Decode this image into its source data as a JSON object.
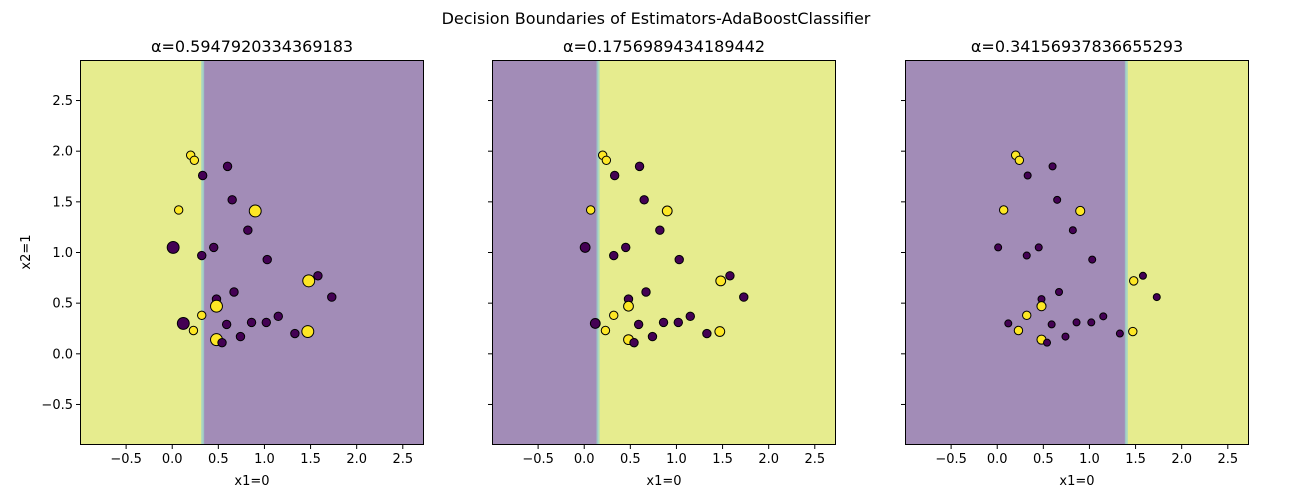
{
  "suptitle": "Decision Boundaries of Estimators-AdaBoostClassifier",
  "chart_data": {
    "type": "scatter",
    "xlim": [
      -1.0,
      2.73
    ],
    "ylim": [
      -0.9,
      2.9
    ],
    "xticks": [
      -0.5,
      0.0,
      0.5,
      1.0,
      1.5,
      2.0,
      2.5
    ],
    "yticks": [
      -0.5,
      0.0,
      0.5,
      1.0,
      1.5,
      2.0,
      2.5
    ],
    "xtick_labels": [
      "−0.5",
      "0.0",
      "0.5",
      "1.0",
      "1.5",
      "2.0",
      "2.5"
    ],
    "ytick_labels": [
      "−0.5",
      "0.0",
      "0.5",
      "1.0",
      "1.5",
      "2.0",
      "2.5"
    ],
    "xlabel": "x1=0",
    "ylabel": "x2=1",
    "colors": {
      "class0": "#440154",
      "class1": "#fde725",
      "region0": "#a28cb7",
      "region1": "#e6ec8e",
      "edge": "#000000"
    },
    "points": [
      {
        "x": 0.2,
        "y": 1.96,
        "c": 1
      },
      {
        "x": 0.24,
        "y": 1.91,
        "c": 1
      },
      {
        "x": 0.6,
        "y": 1.85,
        "c": 0
      },
      {
        "x": 0.33,
        "y": 1.76,
        "c": 0
      },
      {
        "x": 0.65,
        "y": 1.52,
        "c": 0
      },
      {
        "x": 0.07,
        "y": 1.42,
        "c": 1
      },
      {
        "x": 0.9,
        "y": 1.41,
        "c": 1
      },
      {
        "x": 0.82,
        "y": 1.22,
        "c": 0
      },
      {
        "x": 0.01,
        "y": 1.05,
        "c": 0
      },
      {
        "x": 0.45,
        "y": 1.05,
        "c": 0
      },
      {
        "x": 0.32,
        "y": 0.97,
        "c": 0
      },
      {
        "x": 1.03,
        "y": 0.93,
        "c": 0
      },
      {
        "x": 1.58,
        "y": 0.77,
        "c": 0
      },
      {
        "x": 1.48,
        "y": 0.72,
        "c": 1
      },
      {
        "x": 0.67,
        "y": 0.61,
        "c": 0
      },
      {
        "x": 1.73,
        "y": 0.56,
        "c": 0
      },
      {
        "x": 0.48,
        "y": 0.54,
        "c": 0
      },
      {
        "x": 0.48,
        "y": 0.47,
        "c": 1
      },
      {
        "x": 0.32,
        "y": 0.38,
        "c": 1
      },
      {
        "x": 1.15,
        "y": 0.37,
        "c": 0
      },
      {
        "x": 0.86,
        "y": 0.31,
        "c": 0
      },
      {
        "x": 1.02,
        "y": 0.31,
        "c": 0
      },
      {
        "x": 0.12,
        "y": 0.3,
        "c": 0
      },
      {
        "x": 0.59,
        "y": 0.29,
        "c": 0
      },
      {
        "x": 0.23,
        "y": 0.23,
        "c": 1
      },
      {
        "x": 1.47,
        "y": 0.22,
        "c": 1
      },
      {
        "x": 1.33,
        "y": 0.2,
        "c": 0
      },
      {
        "x": 0.74,
        "y": 0.17,
        "c": 0
      },
      {
        "x": 0.48,
        "y": 0.14,
        "c": 1
      },
      {
        "x": 0.54,
        "y": 0.11,
        "c": 0
      }
    ],
    "panels": [
      {
        "title": "α=0.5947920334369183",
        "threshold": 0.33,
        "left_class": 1,
        "sizes": [
          1.2,
          1.2,
          1.2,
          1.2,
          1.2,
          1.2,
          1.7,
          1.2,
          1.7,
          1.2,
          1.2,
          1.2,
          1.2,
          1.7,
          1.2,
          1.2,
          1.2,
          1.7,
          1.2,
          1.2,
          1.2,
          1.2,
          1.7,
          1.2,
          1.2,
          1.7,
          1.2,
          1.2,
          1.7,
          1.2
        ]
      },
      {
        "title": "α=0.1756989434189442",
        "threshold": 0.15,
        "left_class": 0,
        "sizes": [
          1.2,
          1.2,
          1.2,
          1.2,
          1.2,
          1.2,
          1.4,
          1.2,
          1.4,
          1.2,
          1.2,
          1.2,
          1.2,
          1.4,
          1.2,
          1.2,
          1.2,
          1.4,
          1.2,
          1.2,
          1.2,
          1.2,
          1.4,
          1.2,
          1.2,
          1.4,
          1.2,
          1.2,
          1.4,
          1.2
        ]
      },
      {
        "title": "α=0.34156937836655293",
        "threshold": 1.4,
        "left_class": 0,
        "sizes": [
          1.2,
          1.2,
          1.0,
          1.0,
          1.0,
          1.2,
          1.3,
          1.0,
          1.0,
          1.0,
          1.0,
          1.0,
          1.0,
          1.2,
          1.0,
          1.0,
          1.0,
          1.3,
          1.2,
          1.0,
          1.0,
          1.0,
          1.0,
          1.0,
          1.2,
          1.2,
          1.0,
          1.0,
          1.3,
          1.0
        ]
      }
    ]
  }
}
